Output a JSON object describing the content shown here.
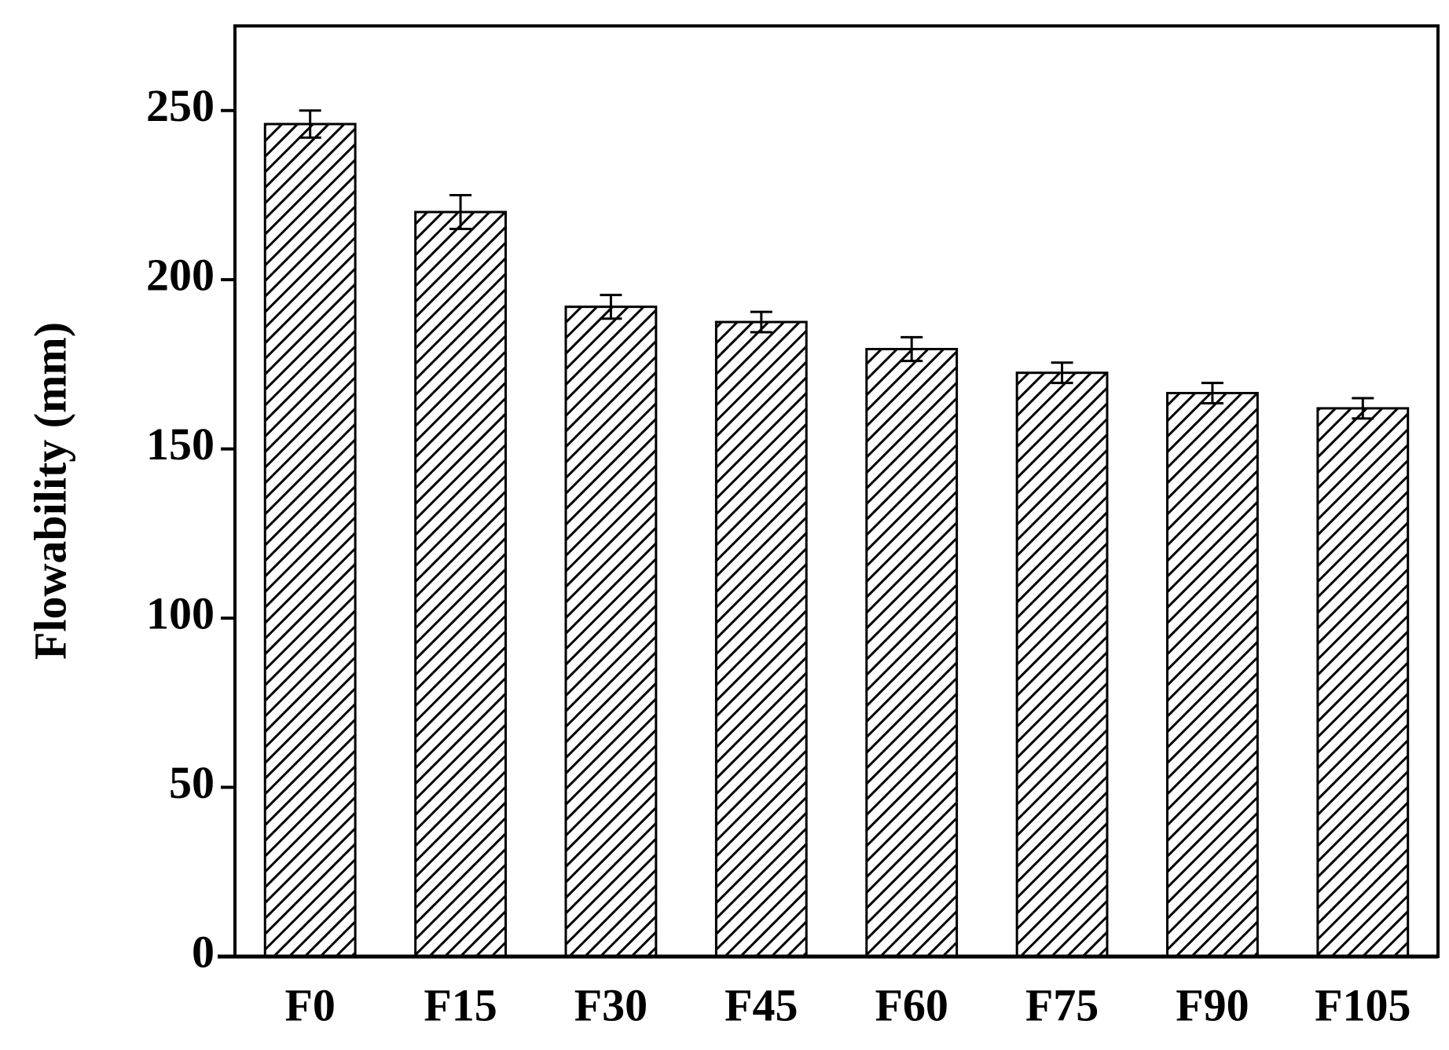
{
  "chart_data": {
    "type": "bar",
    "y_label": "Flowability (mm)",
    "categories": [
      "F0",
      "F15",
      "F30",
      "F45",
      "F60",
      "F75",
      "F90",
      "F105"
    ],
    "values": [
      246,
      220,
      192,
      187.5,
      179.5,
      172.5,
      166.5,
      162
    ],
    "errors": [
      4,
      5,
      3.5,
      3,
      3.5,
      3,
      3,
      3
    ],
    "color": "#000000",
    "ylim": [
      0,
      275
    ],
    "yticks": [
      0,
      50,
      100,
      150,
      200,
      250
    ],
    "grid": false
  }
}
